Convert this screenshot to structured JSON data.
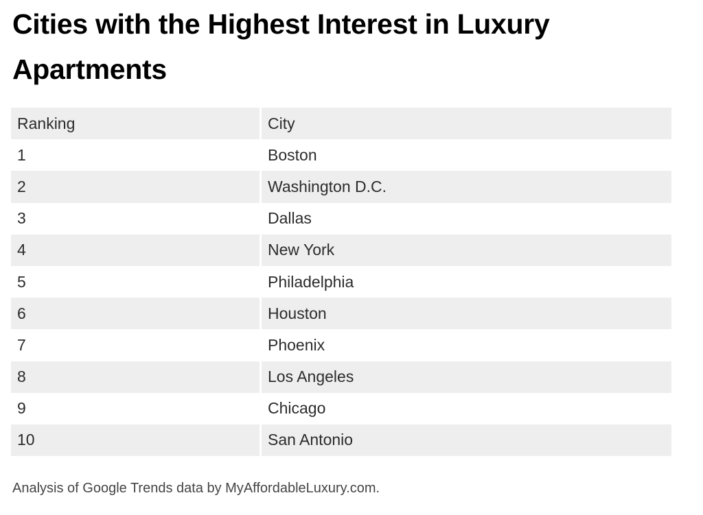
{
  "title": "Cities with the Highest Interest in Luxury Apartments",
  "colors": {
    "shaded_row": "#eeeeee",
    "plain_row": "#ffffff",
    "title_text": "#000000",
    "cell_text": "#2b2b2b",
    "footnote_text": "#444444"
  },
  "chart_data": {
    "type": "table",
    "title": "Cities with the Highest Interest in Luxury Apartments",
    "columns": [
      "Ranking",
      "City"
    ],
    "rows": [
      {
        "ranking": "1",
        "city": "Boston"
      },
      {
        "ranking": "2",
        "city": "Washington D.C."
      },
      {
        "ranking": "3",
        "city": "Dallas"
      },
      {
        "ranking": "4",
        "city": "New York"
      },
      {
        "ranking": "5",
        "city": "Philadelphia"
      },
      {
        "ranking": "6",
        "city": "Houston"
      },
      {
        "ranking": "7",
        "city": "Phoenix"
      },
      {
        "ranking": "8",
        "city": "Los Angeles"
      },
      {
        "ranking": "9",
        "city": "Chicago"
      },
      {
        "ranking": "10",
        "city": "San Antonio"
      }
    ]
  },
  "footnote": "Analysis of Google Trends data by MyAffordableLuxury.com."
}
